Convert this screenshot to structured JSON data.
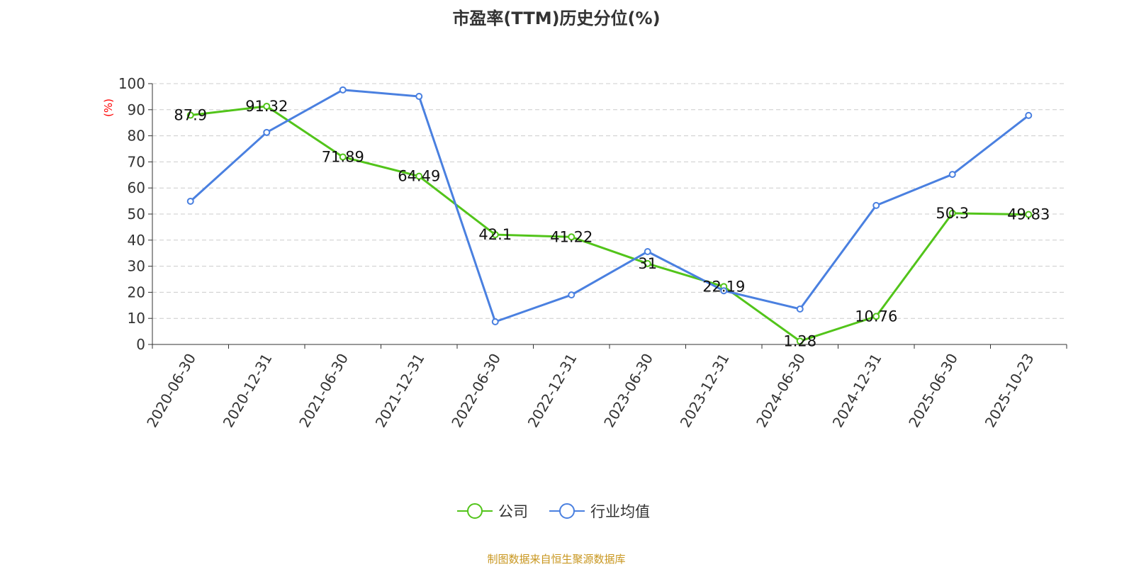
{
  "chart_data": {
    "type": "line",
    "title": "市盈率(TTM)历史分位(%)",
    "ylabel": "(%)",
    "xlabel": "",
    "ylim": [
      0,
      100
    ],
    "yticks": [
      0,
      10,
      20,
      30,
      40,
      50,
      60,
      70,
      80,
      90,
      100
    ],
    "grid": true,
    "legend_position": "bottom",
    "categories": [
      "2020-06-30",
      "2020-12-31",
      "2021-06-30",
      "2021-12-31",
      "2022-06-30",
      "2022-12-31",
      "2023-06-30",
      "2023-12-31",
      "2024-06-30",
      "2024-12-31",
      "2025-06-30",
      "2025-10-23"
    ],
    "series": [
      {
        "name": "公司",
        "color": "#52c41a",
        "labels": true,
        "values": [
          87.9,
          91.32,
          71.89,
          64.49,
          42.1,
          41.22,
          31,
          22.19,
          1.28,
          10.76,
          50.3,
          49.83
        ]
      },
      {
        "name": "行业均值",
        "color": "#4a80e0",
        "labels": false,
        "values": [
          54.9,
          81.3,
          97.6,
          95.1,
          8.7,
          19.0,
          35.6,
          20.6,
          13.6,
          53.3,
          65.2,
          87.8
        ]
      }
    ]
  },
  "source": "制图数据来自恒生聚源数据库"
}
